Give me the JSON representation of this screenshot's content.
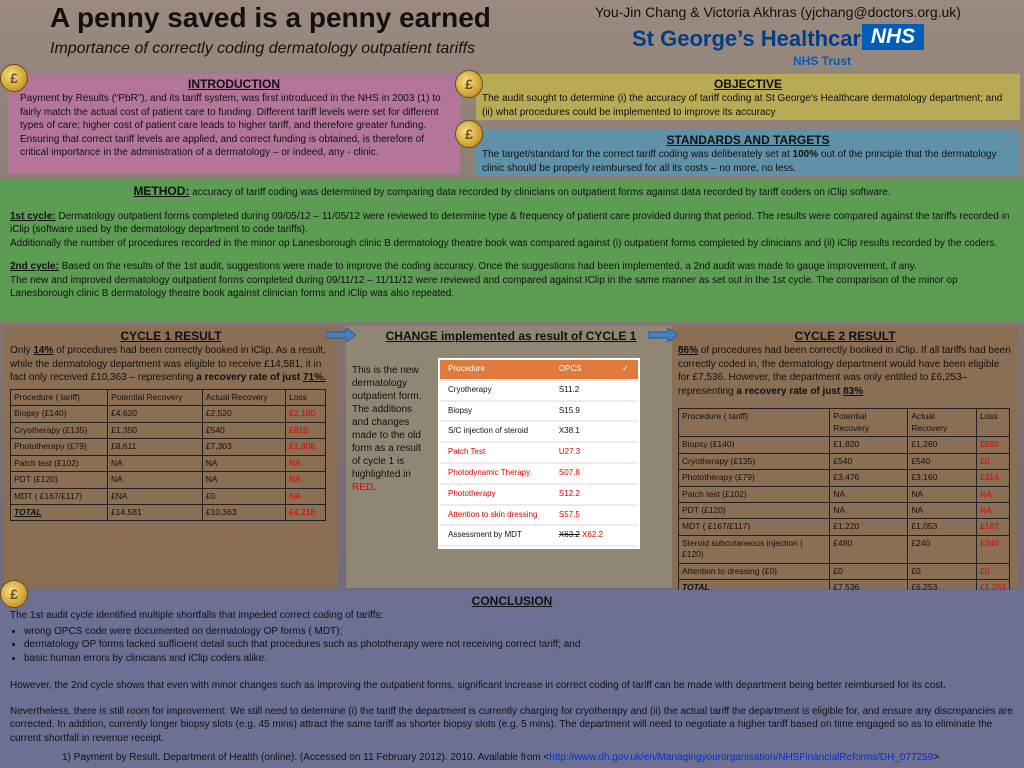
{
  "header": {
    "title": "A penny saved is a penny earned",
    "subtitle": "Importance of correctly coding dermatology outpatient tariffs",
    "authors": "You-Jin Chang & Victoria Akhras (yjchang@doctors.org.uk)",
    "org": "St George’s Healthcare",
    "nhs": "NHS",
    "trust": "NHS Trust"
  },
  "intro": {
    "heading": "INTRODUCTION",
    "text": "Payment by Results (“PbR”), and its tariff system, was first introduced in the NHS in 2003 (1) to fairly match the actual cost of patient care to funding. Different tariff levels were set for different types of care; higher cost of patient care leads to higher tariff, and therefore greater funding. Ensuring that correct tariff levels are applied, and correct funding is obtained, is therefore of critical importance in the administration of a dermatology – or indeed, any - clinic."
  },
  "objective": {
    "heading": "OBJECTIVE",
    "text": "The audit sought to determine (i) the accuracy of tariff coding at St George's Healthcare dermatology department; and (ii) what procedures could be implemented to improve its accuracy"
  },
  "standards": {
    "heading": "STANDARDS AND TARGETS",
    "pre": "The target/standard for the correct tariff coding was deliberately set at ",
    "bold": "100%",
    "post": " out of the principle that the dermatology clinic should be properly reimbursed for all its costs – no more, no less."
  },
  "method": {
    "heading": "METHOD:",
    "intro": " accuracy of tariff coding was determined by comparing data recorded by clinicians on outpatient forms against data recorded by tariff coders on iClip software.",
    "c1_label": "1st cycle:",
    "c1_text": " Dermatology outpatient forms completed during 09/05/12 – 11/05/12 were reviewed to determine type & frequency of patient care provided during that period. The results were compared against the tariffs recorded in iClip (software used by the dermatology department to code tariffs).",
    "c1_text2": "Additionally the number of procedures recorded in the minor op Lanesborough clinic B dermatology theatre book was compared against (i) outpatient forms completed by clinicians and (ii) iClip results recorded by the coders.",
    "c2_label": "2nd cycle:",
    "c2_text": " Based on the results of the 1st audit, suggestions were made to improve the coding accuracy. Once the suggestions had been implemented, a 2nd audit was made to gauge improvement, if any.",
    "c2_text2": "The new and improved dermatology outpatient forms completed during 09/11/12 – 11/11/12 were reviewed and compared against IClip in the same manner as set out in the 1st cycle. The comparison of the minor op Lanesborough clinic B dermatology theatre book against clinician forms and iClip was also repeated."
  },
  "cycle1": {
    "heading": "CYCLE 1 RESULT",
    "t1": "Only ",
    "b1": "14%",
    "t2": " of procedures had been correctly booked in iClip. As a result, while the dermatology department was eligible to receive £14,581, it  in fact only received £10,363 – representing ",
    "b2": "a recovery rate of just ",
    "b3": "71%.",
    "headers": [
      "Procedure ( tariff)",
      "Potential Recovery",
      "Actual Recovery",
      "Loss"
    ],
    "rows": [
      [
        "Biopsy  (£140)",
        "£4,620",
        "£2,520",
        "£2,100"
      ],
      [
        "Cryotherapy (£135)",
        "£1,350",
        "£540",
        "£810"
      ],
      [
        "Phototherapy (£79)",
        "£8,611",
        "£7,303",
        "£1,308"
      ],
      [
        "Patch test (£102)",
        "NA",
        "NA",
        "NA"
      ],
      [
        "PDT (£120)",
        "NA",
        "NA",
        "NA"
      ],
      [
        "MDT ( £167/£117)",
        "£NA",
        "£0",
        "NA"
      ],
      [
        "TOTAL",
        "£14,581",
        "£10,363",
        "£4,218"
      ]
    ]
  },
  "change": {
    "heading": "CHANGE  implemented as result of CYCLE 1",
    "text": "This is the new dermatology outpatient form. The additions and changes made to the old form as a result of cycle 1 is highlighted in ",
    "red": "RED",
    "headers": [
      "Procedure",
      "OPCS",
      "✓"
    ],
    "rows": [
      {
        "p": "Cryotherapy",
        "c": "S11.2",
        "red": false
      },
      {
        "p": "Biopsy",
        "c": "S15.9",
        "red": false
      },
      {
        "p": "S/C injection of steroid",
        "c": "X38.1",
        "red": false
      },
      {
        "p": "Patch Test",
        "c": "U27.3",
        "red": true
      },
      {
        "p": "Photodynamic Therapy",
        "c": "S07.8",
        "red": true
      },
      {
        "p": "Phototherapy",
        "c": "S12.2",
        "red": true
      },
      {
        "p": "Attention to skin dressing",
        "c": "S57.5",
        "red": true
      },
      {
        "p": "Assessment by MDT",
        "c": "X63.2",
        "c2": "X62.2",
        "red": false
      }
    ]
  },
  "cycle2": {
    "heading": "CYCLE 2 RESULT",
    "b1": "86%",
    "t1": " of procedures had been correctly booked in iClip. If all tariffs had been correctly coded in, the dermatology department would have been eligible for £7,536. However, the department was only entitled to £6,253– representing ",
    "b2": "a recovery rate of just ",
    "b3": "83%",
    "headers": [
      "Procedure ( tariff)",
      "Potential Recovery",
      "Actual Recovery",
      "Loss"
    ],
    "rows": [
      [
        "Biopsy  (£140)",
        "£1,820",
        "£1,260",
        "£560"
      ],
      [
        "Cryotherapy (£135)",
        "£540",
        "£540",
        "£0"
      ],
      [
        "Phototherapy (£79)",
        "£3,476",
        "£3,160",
        "£316"
      ],
      [
        "Patch test (£102)",
        "NA",
        "NA",
        "NA"
      ],
      [
        "PDT (£120)",
        "NA",
        "NA",
        "NA"
      ],
      [
        "MDT ( £167/£117)",
        "£1,220",
        "£1,053",
        "£167"
      ],
      [
        "Steroid subcutaneous injection ( £120)",
        "£480",
        "£240",
        "£240"
      ],
      [
        "Attention to dressing (£0)",
        "£0",
        "£0",
        "£0"
      ],
      [
        "TOTAL",
        "£7,536",
        "£6,253",
        "£1,283"
      ]
    ]
  },
  "conclusion": {
    "heading": "CONCLUSION",
    "lead": "The 1st audit cycle identified multiple shortfalls that impeded correct coding of tariffs:",
    "bullets": [
      "wrong OPCS code were documented on dermatology OP forms ( MDT);",
      "dermatology OP forms lacked sufficient detail such that procedures such as phototherapy were not receiving correct tariff; and",
      "basic human errors by clinicians and iClip coders alike."
    ],
    "p2": "However, the 2nd cycle shows that even with minor changes such as improving the outpatient forms, significant increase in correct coding of tariff can be made with department being better reimbursed for its cost.",
    "p3": "Nevertheless, there is still room for improvement. We still need to determine (i) the tariff the department is currently charging for cryotherapy and (ii) the actual tariff the department is eligible for, and ensure any discrepancies are corrected.  In addition, currently  longer biopsy slots (e.g. 45 mins) attract the same tariff as shorter biopsy slots (e.g. 5 mins). The department will need to negotiate a higher tariff based on time engaged so as to eliminate the current shortfall in revenue receipt.",
    "ref_pre": "1) Payment by Result. Department of Health (online). (Accessed on 11 February 2012). 2010. Available from <",
    "ref_link": "http://www.dh.gov.uk/en/Managingyourorganisation/NHSFinancialReforms/DH_077259",
    "ref_post": ">"
  },
  "icons": [
    "coin-icon",
    "arrow-right-icon"
  ]
}
